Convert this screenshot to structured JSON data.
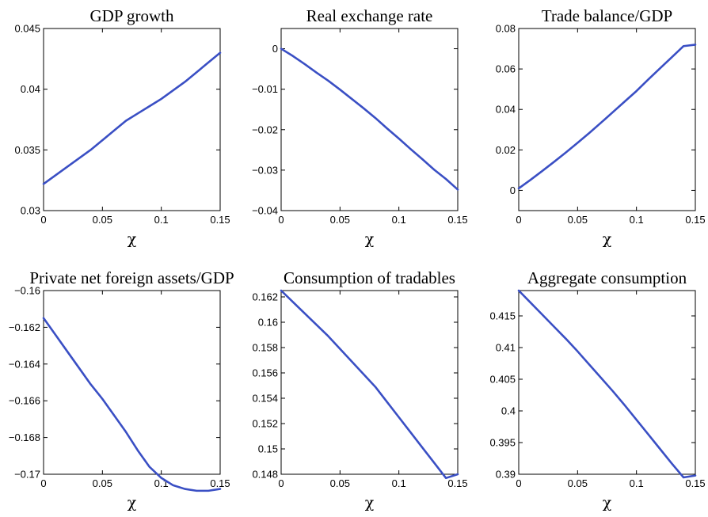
{
  "line_color": "#3a4fc4",
  "chart_data": [
    {
      "type": "line",
      "title": "GDP growth",
      "xlabel": "χ",
      "ylabel": "",
      "xlim": [
        0,
        0.15
      ],
      "ylim": [
        0.03,
        0.045
      ],
      "xticks": [
        0,
        0.05,
        0.1,
        0.15
      ],
      "xtick_labels": [
        "0",
        "0.05",
        "0.1",
        "0.15"
      ],
      "yticks": [
        0.03,
        0.035,
        0.04,
        0.045
      ],
      "ytick_labels": [
        "0.03",
        "0.035",
        "0.04",
        "0.045"
      ],
      "x": [
        0,
        0.01,
        0.02,
        0.03,
        0.04,
        0.05,
        0.06,
        0.07,
        0.08,
        0.09,
        0.1,
        0.11,
        0.12,
        0.13,
        0.14,
        0.15
      ],
      "y": [
        0.0322,
        0.0329,
        0.0336,
        0.0343,
        0.035,
        0.0358,
        0.0366,
        0.0374,
        0.038,
        0.0386,
        0.0392,
        0.0399,
        0.0406,
        0.0414,
        0.0422,
        0.043
      ],
      "grid": false
    },
    {
      "type": "line",
      "title": "Real exchange rate",
      "xlabel": "χ",
      "ylabel": "",
      "xlim": [
        0,
        0.15
      ],
      "ylim": [
        -0.04,
        0.005
      ],
      "xticks": [
        0,
        0.05,
        0.1,
        0.15
      ],
      "xtick_labels": [
        "0",
        "0.05",
        "0.1",
        "0.15"
      ],
      "yticks": [
        -0.04,
        -0.03,
        -0.02,
        -0.01,
        0
      ],
      "ytick_labels": [
        "−0.04",
        "−0.03",
        "−0.02",
        "−0.01",
        "0"
      ],
      "x": [
        0,
        0.01,
        0.02,
        0.03,
        0.04,
        0.05,
        0.06,
        0.07,
        0.08,
        0.09,
        0.1,
        0.11,
        0.12,
        0.13,
        0.14,
        0.15
      ],
      "y": [
        0,
        -0.0018,
        -0.0038,
        -0.0059,
        -0.0079,
        -0.0101,
        -0.0124,
        -0.0147,
        -0.0171,
        -0.0197,
        -0.0222,
        -0.0248,
        -0.0273,
        -0.0299,
        -0.0322,
        -0.0348
      ],
      "grid": false
    },
    {
      "type": "line",
      "title": "Trade balance/GDP",
      "xlabel": "χ",
      "ylabel": "",
      "xlim": [
        0,
        0.15
      ],
      "ylim": [
        -0.01,
        0.08
      ],
      "xticks": [
        0,
        0.05,
        0.1,
        0.15
      ],
      "xtick_labels": [
        "0",
        "0.05",
        "0.1",
        "0.15"
      ],
      "yticks": [
        0,
        0.02,
        0.04,
        0.06,
        0.08
      ],
      "ytick_labels": [
        "0",
        "0.02",
        "0.04",
        "0.06",
        "0.08"
      ],
      "x": [
        0,
        0.01,
        0.02,
        0.03,
        0.04,
        0.05,
        0.06,
        0.07,
        0.08,
        0.09,
        0.1,
        0.11,
        0.12,
        0.13,
        0.14,
        0.15
      ],
      "y": [
        0.001,
        0.0052,
        0.0096,
        0.0141,
        0.0187,
        0.0235,
        0.0284,
        0.0335,
        0.0387,
        0.0439,
        0.0491,
        0.0548,
        0.0603,
        0.0658,
        0.0713,
        0.072
      ],
      "grid": false
    },
    {
      "type": "line",
      "title": "Private net foreign assets/GDP",
      "xlabel": "χ",
      "ylabel": "",
      "xlim": [
        0,
        0.15
      ],
      "ylim": [
        -0.17,
        -0.16
      ],
      "xticks": [
        0,
        0.05,
        0.1,
        0.15
      ],
      "xtick_labels": [
        "0",
        "0.05",
        "0.1",
        "0.15"
      ],
      "yticks": [
        -0.17,
        -0.168,
        -0.166,
        -0.164,
        -0.162,
        -0.16
      ],
      "ytick_labels": [
        "−0.17",
        "−0.168",
        "−0.166",
        "−0.164",
        "−0.162",
        "−0.16"
      ],
      "x": [
        0,
        0.01,
        0.02,
        0.03,
        0.04,
        0.05,
        0.06,
        0.07,
        0.08,
        0.09,
        0.1,
        0.11,
        0.12,
        0.13,
        0.14,
        0.15
      ],
      "y": [
        -0.1615,
        -0.1624,
        -0.1633,
        -0.1642,
        -0.1651,
        -0.1659,
        -0.1668,
        -0.1677,
        -0.1687,
        -0.1696,
        -0.1702,
        -0.1706,
        -0.1708,
        -0.1709,
        -0.1709,
        -0.1708
      ],
      "grid": false
    },
    {
      "type": "line",
      "title": "Consumption of tradables",
      "xlabel": "χ",
      "ylabel": "",
      "xlim": [
        0,
        0.15
      ],
      "ylim": [
        0.148,
        0.1625
      ],
      "xticks": [
        0,
        0.05,
        0.1,
        0.15
      ],
      "xtick_labels": [
        "0",
        "0.05",
        "0.1",
        "0.15"
      ],
      "yticks": [
        0.148,
        0.15,
        0.152,
        0.154,
        0.156,
        0.158,
        0.16,
        0.162
      ],
      "ytick_labels": [
        "0.148",
        "0.15",
        "0.152",
        "0.154",
        "0.156",
        "0.158",
        "0.16",
        "0.162"
      ],
      "x": [
        0,
        0.01,
        0.02,
        0.03,
        0.04,
        0.05,
        0.06,
        0.07,
        0.08,
        0.09,
        0.1,
        0.11,
        0.12,
        0.13,
        0.14,
        0.15
      ],
      "y": [
        0.1625,
        0.1616,
        0.1607,
        0.1598,
        0.1589,
        0.1579,
        0.1569,
        0.1559,
        0.1549,
        0.1537,
        0.1525,
        0.1513,
        0.1501,
        0.1489,
        0.1477,
        0.148
      ],
      "grid": false
    },
    {
      "type": "line",
      "title": "Aggregate consumption",
      "xlabel": "χ",
      "ylabel": "",
      "xlim": [
        0,
        0.15
      ],
      "ylim": [
        0.39,
        0.419
      ],
      "xticks": [
        0,
        0.05,
        0.1,
        0.15
      ],
      "xtick_labels": [
        "0",
        "0.05",
        "0.1",
        "0.15"
      ],
      "yticks": [
        0.39,
        0.395,
        0.4,
        0.405,
        0.41,
        0.415
      ],
      "ytick_labels": [
        "0.39",
        "0.395",
        "0.4",
        "0.405",
        "0.41",
        "0.415"
      ],
      "x": [
        0,
        0.01,
        0.02,
        0.03,
        0.04,
        0.05,
        0.06,
        0.07,
        0.08,
        0.09,
        0.1,
        0.11,
        0.12,
        0.13,
        0.14,
        0.15
      ],
      "y": [
        0.419,
        0.4171,
        0.4152,
        0.4133,
        0.4114,
        0.4094,
        0.4073,
        0.4052,
        0.4031,
        0.4009,
        0.3986,
        0.3963,
        0.394,
        0.3917,
        0.3895,
        0.3898
      ],
      "grid": false
    }
  ]
}
